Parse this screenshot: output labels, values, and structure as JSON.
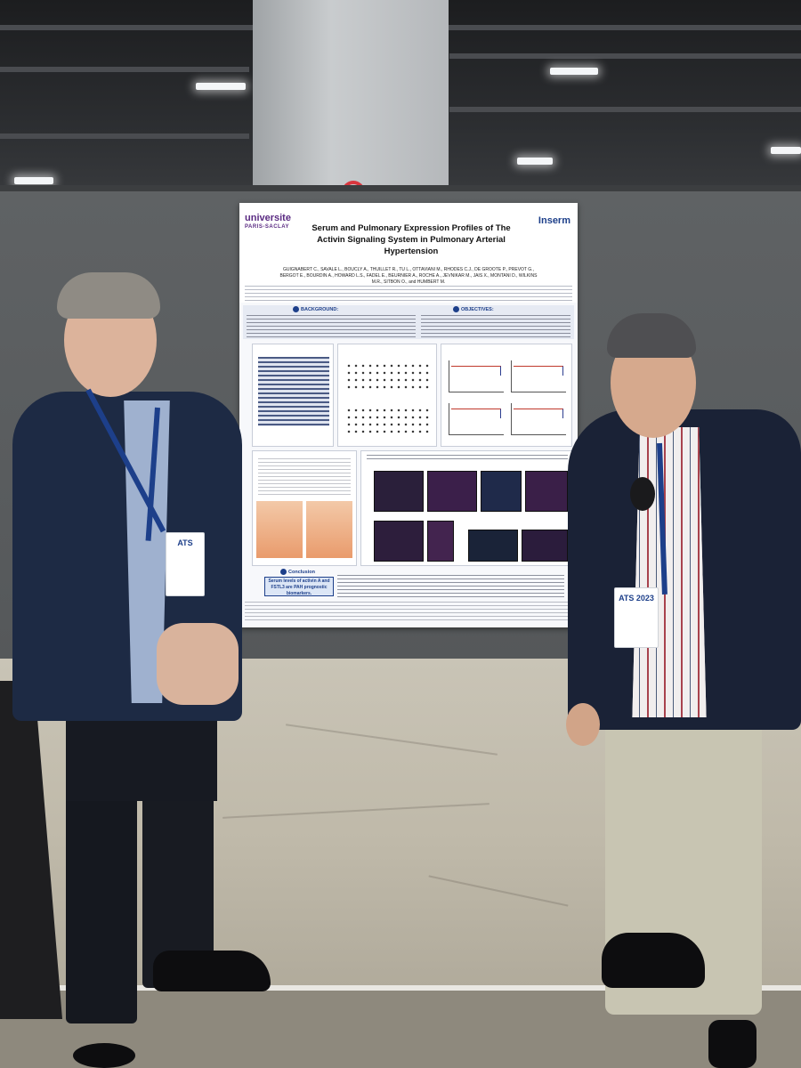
{
  "poster": {
    "logo_left": "universite",
    "logo_left_sub": "PARIS-SACLAY",
    "logo_right": "Inserm",
    "title": "Serum and Pulmonary Expression Profiles of The Activin Signaling System in Pulmonary Arterial Hypertension",
    "authors": "GUIGNABERT C., SAVALE L., BOUCLY A., THUILLET R., TU L., OTTAVIANI M., RHODES C.J., DE GROOTE P., PREVOT G., BERGOT E., BOURDIN A., HOWARD L.S., FADEL E., BEURNIER A., ROCHE A., JEVNIKAR M., JAIS X., MONTANI D., WILKINS M.R., SITBON O., and HUMBERT M.",
    "sections": {
      "background": "BACKGROUND:",
      "objectives": "OBJECTIVES:",
      "conclusion": "Conclusion"
    },
    "conclusion_box": "Serum levels of activin A and FSTL3 are PAH prognostic biomarkers.",
    "citation": "Guignabert et al., Circulation 2023"
  },
  "badge_left": {
    "brand": "ATS"
  },
  "badge_right": {
    "brand": "ATS 2023"
  },
  "colors": {
    "wall": "#5f6264",
    "floor": "#c9c4b6",
    "accent_blue": "#1d3f8a",
    "inserm_red": "#d9363e"
  }
}
